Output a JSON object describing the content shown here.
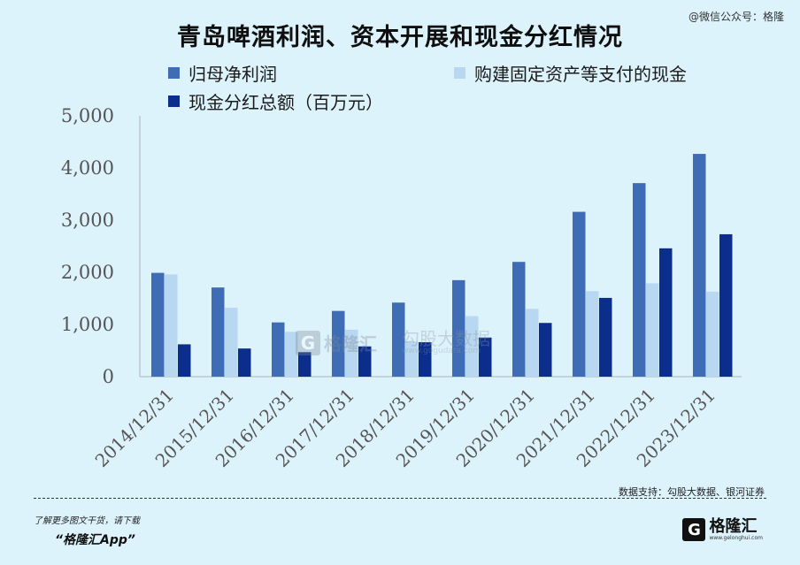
{
  "title": "青岛啤酒利润、资本开展和现金分红情况",
  "watermark_top": "@微信公众号：格隆",
  "legend": [
    {
      "label": "归母净利润",
      "color": "#3e6db5"
    },
    {
      "label": "购建固定资产等支付的现金",
      "color": "#b8d7f0"
    },
    {
      "label": "现金分红总额（百万元）",
      "color": "#0b2e8c"
    }
  ],
  "chart_data": {
    "type": "bar",
    "categories": [
      "2014/12/31",
      "2015/12/31",
      "2016/12/31",
      "2017/12/31",
      "2018/12/31",
      "2019/12/31",
      "2020/12/31",
      "2021/12/31",
      "2022/12/31",
      "2023/12/31"
    ],
    "series": [
      {
        "name": "归母净利润",
        "values": [
          1990,
          1710,
          1040,
          1260,
          1420,
          1850,
          2200,
          3160,
          3710,
          4270
        ]
      },
      {
        "name": "购建固定资产等支付的现金",
        "values": [
          1960,
          1320,
          860,
          900,
          670,
          1160,
          1300,
          1640,
          1790,
          1630
        ]
      },
      {
        "name": "现金分红总额（百万元）",
        "values": [
          620,
          540,
          470,
          580,
          660,
          750,
          1030,
          1510,
          2460,
          2730
        ]
      }
    ],
    "ylim": [
      0,
      5000
    ],
    "yticks": [
      "0",
      "1,000",
      "2,000",
      "3,000",
      "4,000",
      "5,000"
    ],
    "grid": false,
    "legend_position": "top"
  },
  "watermark_center": {
    "brand": "格隆汇",
    "text": "勾股大数据",
    "url": "www.gogudata.com"
  },
  "source": "数据支持：勾股大数据、银河证券",
  "footer_line1": "了解更多图文干货，请下载",
  "footer_app": "“格隆汇App”",
  "logo": {
    "text": "格隆汇",
    "sub": "www.gelonghui.com"
  }
}
